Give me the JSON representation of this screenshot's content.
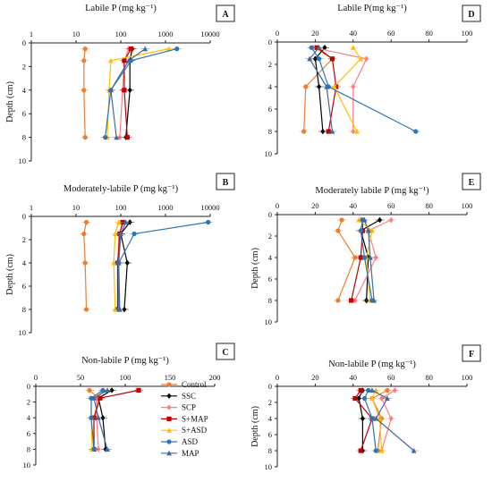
{
  "legend": {
    "entries": [
      {
        "name": "Control",
        "color": "#ed7d31",
        "marker": "circle"
      },
      {
        "name": "SSC",
        "color": "#000000",
        "marker": "diamond"
      },
      {
        "name": "SCP",
        "color": "#ff7c80",
        "marker": "diamond"
      },
      {
        "name": "S+MAP",
        "color": "#c00000",
        "marker": "square"
      },
      {
        "name": "S+ASD",
        "color": "#ffc000",
        "marker": "triangle"
      },
      {
        "name": "ASD",
        "color": "#2e75b6",
        "marker": "circle"
      },
      {
        "name": "MAP",
        "color": "#44699c",
        "marker": "triangle"
      }
    ]
  },
  "chart_data": [
    {
      "panel": "A",
      "type": "line",
      "orientation": "profile",
      "title": "Labile P (mg kg⁻¹)",
      "xlabel": "",
      "ylabel": "Depth (cm)",
      "xscale": "log",
      "xlim": [
        1,
        10000
      ],
      "xticks": [
        "1",
        "10",
        "100",
        "1000",
        "10000"
      ],
      "ylim": [
        0,
        10
      ],
      "yticks": [
        "0",
        "2",
        "4",
        "6",
        "8",
        "10"
      ],
      "depths": [
        0.5,
        1.5,
        4,
        8
      ],
      "series": [
        {
          "name": "Control",
          "values": [
            16,
            15,
            15,
            16
          ]
        },
        {
          "name": "SSC",
          "values": [
            180,
            160,
            160,
            130
          ]
        },
        {
          "name": "SCP",
          "values": [
            150,
            120,
            110,
            95
          ]
        },
        {
          "name": "S+MAP",
          "values": [
            170,
            120,
            120,
            140
          ]
        },
        {
          "name": "S+ASD",
          "values": [
            1200,
            60,
            55,
            50
          ]
        },
        {
          "name": "ASD",
          "values": [
            1800,
            170,
            60,
            45
          ]
        },
        {
          "name": "MAP",
          "values": [
            350,
            150,
            60,
            80
          ]
        }
      ]
    },
    {
      "panel": "B",
      "type": "line",
      "orientation": "profile",
      "title": "Moderately-labile P (mg kg⁻¹)",
      "xlabel": "",
      "ylabel": "Depth (cm)",
      "xscale": "log",
      "xlim": [
        1,
        10000
      ],
      "xticks": [
        "1",
        "10",
        "100",
        "1000",
        "10000"
      ],
      "ylim": [
        0,
        10
      ],
      "yticks": [
        "0",
        "2",
        "4",
        "6",
        "8",
        "10"
      ],
      "depths": [
        0.5,
        1.5,
        4,
        8
      ],
      "series": [
        {
          "name": "Control",
          "values": [
            17,
            15,
            16,
            17
          ]
        },
        {
          "name": "SSC",
          "values": [
            160,
            100,
            140,
            120
          ]
        },
        {
          "name": "SCP",
          "values": [
            120,
            90,
            90,
            90
          ]
        },
        {
          "name": "S+MAP",
          "values": [
            110,
            95,
            85,
            85
          ]
        },
        {
          "name": "S+ASD",
          "values": [
            90,
            75,
            70,
            75
          ]
        },
        {
          "name": "ASD",
          "values": [
            9000,
            200,
            90,
            90
          ]
        },
        {
          "name": "MAP",
          "values": [
            130,
            100,
            90,
            95
          ]
        }
      ]
    },
    {
      "panel": "C",
      "type": "line",
      "orientation": "profile",
      "title": "Non-labile P (mg kg⁻¹)",
      "xlabel": "",
      "ylabel": "Depth (cm)",
      "xscale": "linear",
      "xlim": [
        0,
        200
      ],
      "xticks": [
        "0",
        "50",
        "100",
        "150",
        "200"
      ],
      "ylim": [
        0,
        10
      ],
      "yticks": [
        "0",
        "2",
        "4",
        "6",
        "8",
        "10"
      ],
      "depths": [
        0.5,
        1.5,
        4,
        8
      ],
      "series": [
        {
          "name": "Control",
          "values": [
            60,
            70,
            65,
            65
          ]
        },
        {
          "name": "SSC",
          "values": [
            85,
            70,
            75,
            78
          ]
        },
        {
          "name": "SCP",
          "values": [
            75,
            68,
            68,
            70
          ]
        },
        {
          "name": "S+MAP",
          "values": [
            115,
            72,
            65,
            65
          ]
        },
        {
          "name": "S+ASD",
          "values": [
            80,
            62,
            62,
            63
          ]
        },
        {
          "name": "ASD",
          "values": [
            75,
            62,
            62,
            65
          ]
        },
        {
          "name": "MAP",
          "values": [
            80,
            65,
            70,
            80
          ]
        }
      ]
    },
    {
      "panel": "D",
      "type": "line",
      "orientation": "profile",
      "title": "Labile P(mg kg⁻¹)",
      "xlabel": "",
      "ylabel": "",
      "xscale": "linear",
      "xlim": [
        0,
        100
      ],
      "xticks": [
        "0",
        "20",
        "40",
        "60",
        "80",
        "100"
      ],
      "ylim": [
        0,
        10
      ],
      "yticks": [
        "0",
        "2",
        "4",
        "6",
        "8",
        "10"
      ],
      "depths": [
        0.5,
        1.5,
        4,
        8
      ],
      "series": [
        {
          "name": "Control",
          "values": [
            20,
            29,
            15,
            14
          ]
        },
        {
          "name": "SSC",
          "values": [
            25,
            20,
            22,
            24
          ]
        },
        {
          "name": "SCP",
          "values": [
            19,
            47,
            40,
            40
          ]
        },
        {
          "name": "S+MAP",
          "values": [
            21,
            29,
            31,
            27
          ]
        },
        {
          "name": "S+ASD",
          "values": [
            40,
            44,
            30,
            42
          ]
        },
        {
          "name": "ASD",
          "values": [
            18,
            22,
            27,
            73
          ]
        },
        {
          "name": "MAP",
          "values": [
            22,
            17,
            26,
            29
          ]
        }
      ]
    },
    {
      "panel": "E",
      "type": "line",
      "orientation": "profile",
      "title": "Moderately labile P (mg kg⁻¹)",
      "xlabel": "",
      "ylabel": "Depth (cm)",
      "xscale": "linear",
      "xlim": [
        0,
        100
      ],
      "xticks": [
        "0",
        "20",
        "40",
        "60",
        "80",
        "100"
      ],
      "ylim": [
        0,
        10
      ],
      "yticks": [
        "0",
        "2",
        "4",
        "6",
        "8",
        "10"
      ],
      "depths": [
        0.5,
        1.5,
        4,
        8
      ],
      "series": [
        {
          "name": "Control",
          "values": [
            34,
            32,
            41,
            32
          ]
        },
        {
          "name": "SSC",
          "values": [
            54,
            44,
            48,
            47
          ]
        },
        {
          "name": "SCP",
          "values": [
            60,
            48,
            52,
            41
          ]
        },
        {
          "name": "S+MAP",
          "values": [
            45,
            45,
            44,
            39
          ]
        },
        {
          "name": "S+ASD",
          "values": [
            43,
            50,
            47,
            49
          ]
        },
        {
          "name": "ASD",
          "values": [
            45,
            44,
            46,
            50
          ]
        },
        {
          "name": "MAP",
          "values": [
            46,
            48,
            49,
            51
          ]
        }
      ]
    },
    {
      "panel": "F",
      "type": "line",
      "orientation": "profile",
      "title": "Non-labile P (mg kg⁻¹)",
      "xlabel": "",
      "ylabel": "Depth (cm)",
      "xscale": "linear",
      "xlim": [
        0,
        100
      ],
      "xticks": [
        "0",
        "20",
        "40",
        "60",
        "80",
        "100"
      ],
      "ylim": [
        0,
        10
      ],
      "yticks": [
        "0",
        "2",
        "4",
        "6",
        "8",
        "10"
      ],
      "depths": [
        0.5,
        1.5,
        4,
        8
      ],
      "series": [
        {
          "name": "Control",
          "values": [
            58,
            50,
            55,
            53
          ]
        },
        {
          "name": "SSC",
          "values": [
            45,
            43,
            45,
            45
          ]
        },
        {
          "name": "SCP",
          "values": [
            62,
            55,
            60,
            55
          ]
        },
        {
          "name": "S+MAP",
          "values": [
            44,
            41,
            50,
            44
          ]
        },
        {
          "name": "S+ASD",
          "values": [
            52,
            50,
            54,
            55
          ]
        },
        {
          "name": "ASD",
          "values": [
            48,
            46,
            50,
            52
          ]
        },
        {
          "name": "MAP",
          "values": [
            50,
            58,
            52,
            72
          ]
        }
      ]
    }
  ]
}
